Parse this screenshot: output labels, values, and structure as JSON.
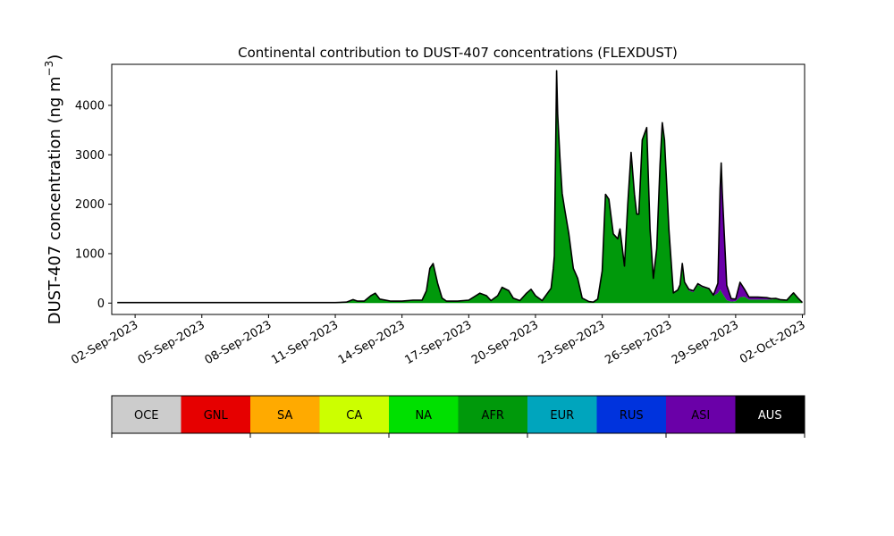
{
  "chart_data": {
    "type": "area",
    "title": "Continental contribution to DUST-407 concentrations (FLEXDUST)",
    "ylabel_main": "DUST-407 concentration (ng m",
    "ylabel_exp": "−3",
    "ylabel_close": ")",
    "xlabel": "",
    "x_unit": "days from 02-Sep-2023 00:00",
    "xlim": [
      -1.05,
      30.1
    ],
    "ylim": [
      -230,
      4830
    ],
    "yticks": [
      0,
      1000,
      2000,
      3000,
      4000
    ],
    "xticks": [
      {
        "x": 0,
        "label": "02-Sep-2023"
      },
      {
        "x": 3,
        "label": "05-Sep-2023"
      },
      {
        "x": 6,
        "label": "08-Sep-2023"
      },
      {
        "x": 9,
        "label": "11-Sep-2023"
      },
      {
        "x": 12,
        "label": "14-Sep-2023"
      },
      {
        "x": 15,
        "label": "17-Sep-2023"
      },
      {
        "x": 18,
        "label": "20-Sep-2023"
      },
      {
        "x": 21,
        "label": "23-Sep-2023"
      },
      {
        "x": 24,
        "label": "26-Sep-2023"
      },
      {
        "x": 27,
        "label": "29-Sep-2023"
      },
      {
        "x": 30,
        "label": "02-Oct-2023"
      }
    ],
    "series": [
      {
        "name": "AFR",
        "color": "#00990b",
        "points": [
          [
            -0.8,
            10
          ],
          [
            0,
            10
          ],
          [
            1,
            10
          ],
          [
            2,
            10
          ],
          [
            3,
            10
          ],
          [
            4,
            10
          ],
          [
            5,
            10
          ],
          [
            6,
            10
          ],
          [
            7,
            10
          ],
          [
            8,
            10
          ],
          [
            9,
            10
          ],
          [
            9.5,
            20
          ],
          [
            9.8,
            70
          ],
          [
            10,
            40
          ],
          [
            10.3,
            40
          ],
          [
            10.6,
            150
          ],
          [
            10.8,
            200
          ],
          [
            11,
            80
          ],
          [
            11.5,
            40
          ],
          [
            12,
            40
          ],
          [
            12.5,
            60
          ],
          [
            12.9,
            60
          ],
          [
            13.1,
            250
          ],
          [
            13.25,
            700
          ],
          [
            13.4,
            800
          ],
          [
            13.6,
            400
          ],
          [
            13.8,
            100
          ],
          [
            14,
            40
          ],
          [
            14.5,
            40
          ],
          [
            15,
            60
          ],
          [
            15.5,
            200
          ],
          [
            15.8,
            150
          ],
          [
            16,
            50
          ],
          [
            16.3,
            150
          ],
          [
            16.5,
            320
          ],
          [
            16.8,
            250
          ],
          [
            17,
            100
          ],
          [
            17.3,
            50
          ],
          [
            17.6,
            200
          ],
          [
            17.8,
            280
          ],
          [
            18,
            150
          ],
          [
            18.3,
            50
          ],
          [
            18.7,
            300
          ],
          [
            18.85,
            900
          ],
          [
            18.95,
            4400
          ],
          [
            19.0,
            3600
          ],
          [
            19.2,
            2200
          ],
          [
            19.5,
            1400
          ],
          [
            19.7,
            700
          ],
          [
            19.9,
            500
          ],
          [
            20.1,
            100
          ],
          [
            20.4,
            30
          ],
          [
            20.6,
            20
          ],
          [
            20.8,
            80
          ],
          [
            21,
            650
          ],
          [
            21.15,
            2200
          ],
          [
            21.3,
            2100
          ],
          [
            21.5,
            1400
          ],
          [
            21.7,
            1300
          ],
          [
            21.8,
            1500
          ],
          [
            22,
            750
          ],
          [
            22.15,
            2000
          ],
          [
            22.3,
            3050
          ],
          [
            22.45,
            2200
          ],
          [
            22.55,
            1800
          ],
          [
            22.65,
            1800
          ],
          [
            22.8,
            3300
          ],
          [
            23.0,
            3550
          ],
          [
            23.15,
            1500
          ],
          [
            23.3,
            500
          ],
          [
            23.45,
            1100
          ],
          [
            23.6,
            2800
          ],
          [
            23.7,
            3650
          ],
          [
            23.8,
            3300
          ],
          [
            24.0,
            1500
          ],
          [
            24.2,
            200
          ],
          [
            24.4,
            250
          ],
          [
            24.5,
            350
          ],
          [
            24.6,
            780
          ],
          [
            24.7,
            400
          ],
          [
            24.9,
            250
          ],
          [
            25.1,
            220
          ],
          [
            25.3,
            370
          ],
          [
            25.5,
            320
          ],
          [
            25.8,
            280
          ],
          [
            26.0,
            150
          ],
          [
            26.2,
            200
          ],
          [
            26.3,
            270
          ],
          [
            26.4,
            200
          ],
          [
            26.6,
            60
          ],
          [
            26.8,
            30
          ],
          [
            27.0,
            40
          ],
          [
            27.2,
            120
          ],
          [
            27.4,
            130
          ],
          [
            27.6,
            70
          ],
          [
            28.0,
            70
          ],
          [
            28.4,
            70
          ],
          [
            28.6,
            70
          ],
          [
            28.8,
            80
          ],
          [
            29.0,
            60
          ],
          [
            29.3,
            50
          ],
          [
            29.5,
            150
          ],
          [
            29.6,
            200
          ],
          [
            29.8,
            100
          ],
          [
            30.0,
            10
          ]
        ]
      },
      {
        "name": "ASI",
        "color": "#6a00a8",
        "points": [
          [
            -0.8,
            0
          ],
          [
            24,
            0
          ],
          [
            24.2,
            5
          ],
          [
            24.5,
            20
          ],
          [
            25,
            30
          ],
          [
            26.0,
            10
          ],
          [
            26.2,
            200
          ],
          [
            26.3,
            2050
          ],
          [
            26.35,
            2600
          ],
          [
            26.4,
            2050
          ],
          [
            26.6,
            300
          ],
          [
            26.8,
            60
          ],
          [
            27.0,
            40
          ],
          [
            27.2,
            300
          ],
          [
            27.4,
            150
          ],
          [
            27.6,
            50
          ],
          [
            28.0,
            50
          ],
          [
            28.4,
            40
          ],
          [
            28.6,
            20
          ],
          [
            29.0,
            10
          ],
          [
            29.5,
            10
          ],
          [
            30.0,
            0
          ]
        ]
      },
      {
        "name": "RUS",
        "color": "#0033dd",
        "points": [
          [
            -0.8,
            0
          ],
          [
            18.8,
            0
          ],
          [
            18.9,
            120
          ],
          [
            18.95,
            300
          ],
          [
            19.1,
            50
          ],
          [
            19.3,
            0
          ],
          [
            30.0,
            0
          ]
        ]
      }
    ],
    "outline_color": "#000000",
    "legend_entries": [
      {
        "name": "OCE",
        "color": "#cccccc",
        "text_color": "#000000"
      },
      {
        "name": "GNL",
        "color": "#e60000",
        "text_color": "#000000"
      },
      {
        "name": "SA",
        "color": "#ffaa00",
        "text_color": "#000000"
      },
      {
        "name": "CA",
        "color": "#ccff00",
        "text_color": "#000000"
      },
      {
        "name": "NA",
        "color": "#00e000",
        "text_color": "#000000"
      },
      {
        "name": "AFR",
        "color": "#00990b",
        "text_color": "#000000"
      },
      {
        "name": "EUR",
        "color": "#00a5bd",
        "text_color": "#000000"
      },
      {
        "name": "RUS",
        "color": "#0033dd",
        "text_color": "#000000"
      },
      {
        "name": "ASI",
        "color": "#6a00a8",
        "text_color": "#000000"
      },
      {
        "name": "AUS",
        "color": "#000000",
        "text_color": "#ffffff"
      }
    ],
    "legend_placement": "below plot, as a colorbar",
    "grid": false
  }
}
